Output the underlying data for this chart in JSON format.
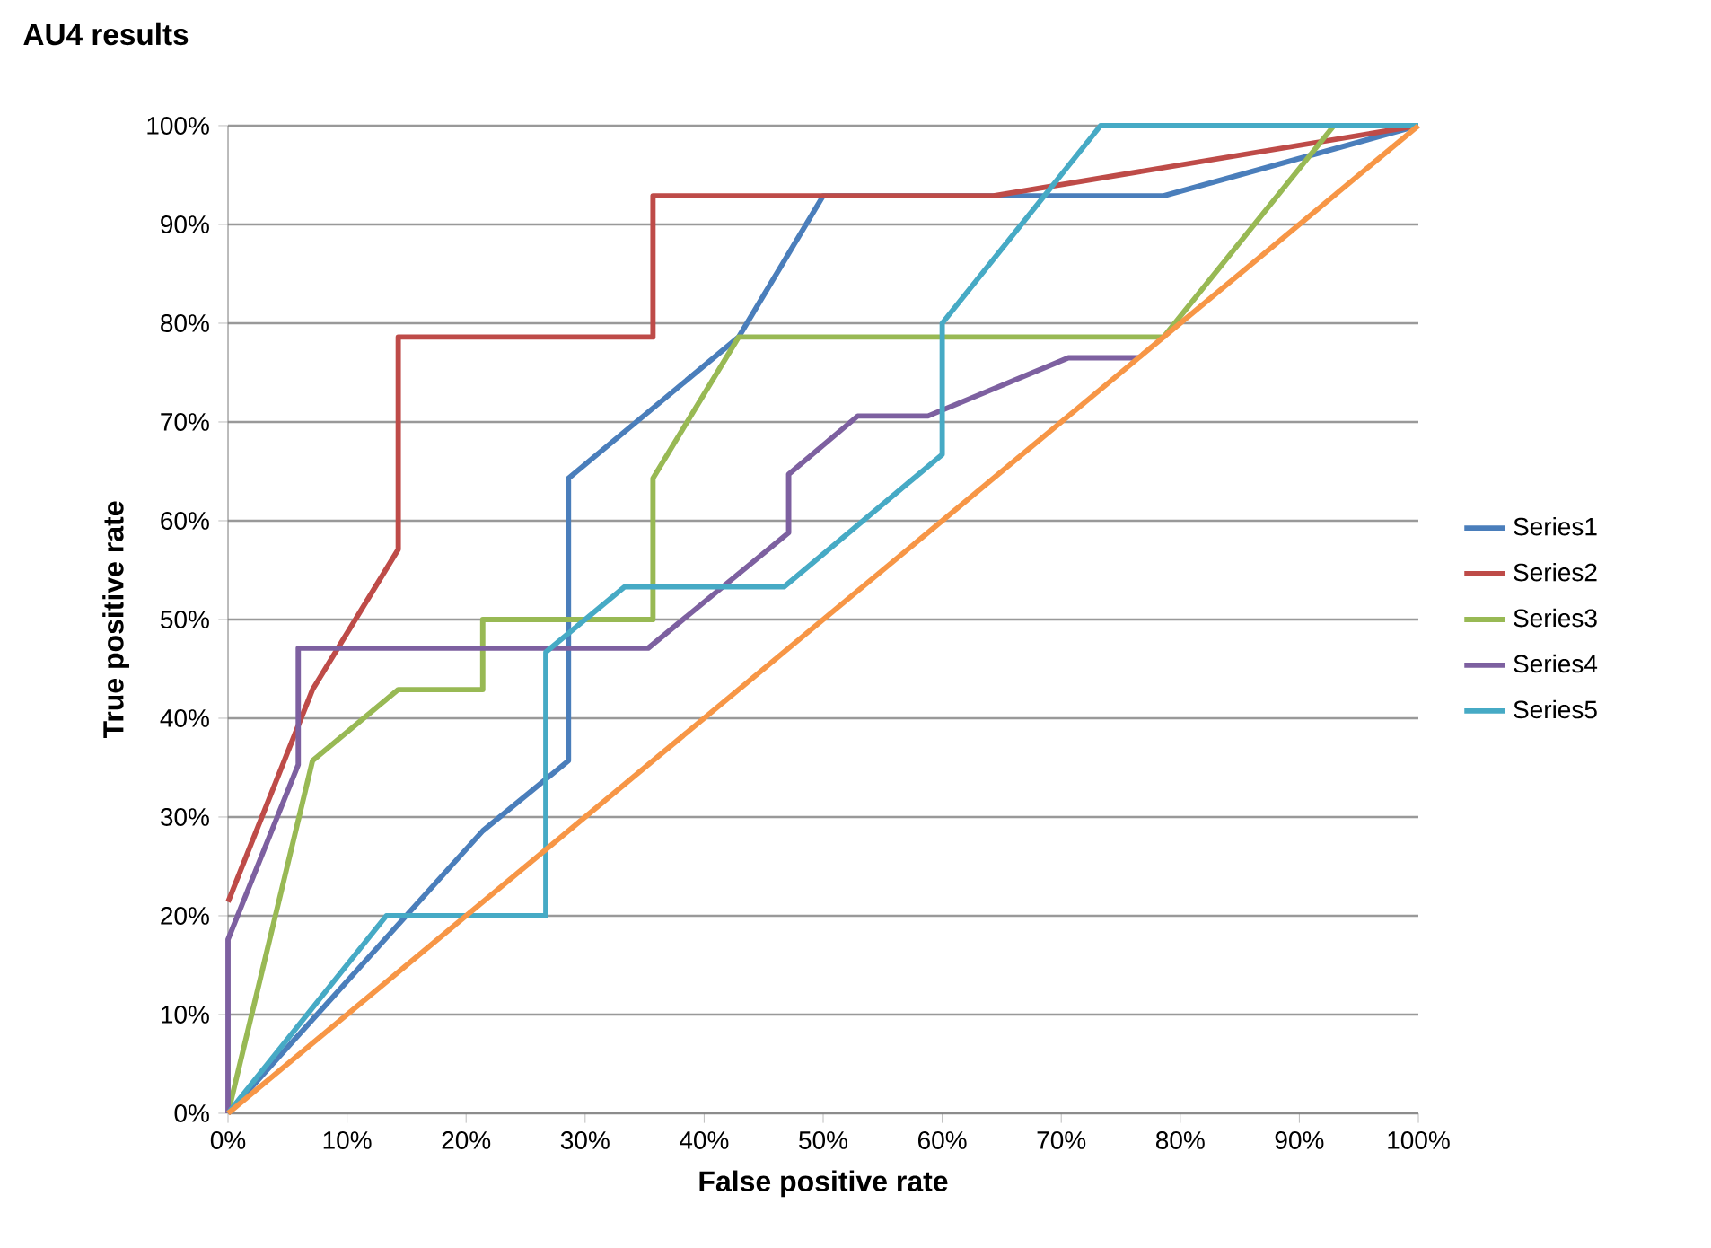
{
  "chart_data": {
    "type": "line",
    "title": "AU4 results",
    "xlabel": "False positive rate",
    "ylabel": "True positive rate",
    "xlim": [
      0,
      100
    ],
    "ylim": [
      0,
      100
    ],
    "xticks": [
      {
        "value": 0,
        "label": "0%"
      },
      {
        "value": 10,
        "label": "10%"
      },
      {
        "value": 20,
        "label": "20%"
      },
      {
        "value": 30,
        "label": "30%"
      },
      {
        "value": 40,
        "label": "40%"
      },
      {
        "value": 50,
        "label": "50%"
      },
      {
        "value": 60,
        "label": "60%"
      },
      {
        "value": 70,
        "label": "70%"
      },
      {
        "value": 80,
        "label": "80%"
      },
      {
        "value": 90,
        "label": "90%"
      },
      {
        "value": 100,
        "label": "100%"
      }
    ],
    "yticks": [
      {
        "value": 0,
        "label": "0%"
      },
      {
        "value": 10,
        "label": "10%"
      },
      {
        "value": 20,
        "label": "20%"
      },
      {
        "value": 30,
        "label": "30%"
      },
      {
        "value": 40,
        "label": "40%"
      },
      {
        "value": 50,
        "label": "50%"
      },
      {
        "value": 60,
        "label": "60%"
      },
      {
        "value": 70,
        "label": "70%"
      },
      {
        "value": 80,
        "label": "80%"
      },
      {
        "value": 90,
        "label": "90%"
      },
      {
        "value": 100,
        "label": "100%"
      }
    ],
    "grid": "y",
    "legend": "right",
    "marker": "none",
    "line_style": "solid",
    "series": [
      {
        "name": "Series1",
        "color": "#4a7ebb",
        "x": [
          0,
          21.4,
          28.6,
          28.6,
          42.9,
          50,
          78.6,
          100
        ],
        "values": [
          0,
          28.6,
          35.7,
          64.3,
          78.6,
          92.9,
          92.9,
          100
        ]
      },
      {
        "name": "Series2",
        "color": "#be4b48",
        "x": [
          0,
          7.1,
          14.3,
          14.3,
          35.7,
          35.7,
          64.3,
          100
        ],
        "values": [
          21.4,
          42.9,
          57.1,
          78.6,
          78.6,
          92.9,
          92.9,
          100
        ]
      },
      {
        "name": "Series3",
        "color": "#98b954",
        "x": [
          0,
          7.1,
          14.3,
          21.4,
          21.4,
          35.7,
          35.7,
          42.9,
          78.6,
          92.9
        ],
        "values": [
          0,
          35.7,
          42.9,
          42.9,
          50,
          50,
          64.3,
          78.6,
          78.6,
          100
        ]
      },
      {
        "name": "Series4",
        "color": "#7d60a0",
        "x": [
          0,
          0,
          5.9,
          5.9,
          35.3,
          47.1,
          47.1,
          52.9,
          58.8,
          70.6,
          76.5
        ],
        "values": [
          0,
          17.6,
          35.3,
          47.1,
          47.1,
          58.8,
          64.7,
          70.6,
          70.6,
          76.5,
          76.5
        ]
      },
      {
        "name": "Series5",
        "color": "#46aac5",
        "x": [
          0,
          13.3,
          26.7,
          26.7,
          33.3,
          46.7,
          60,
          60,
          73.3,
          100
        ],
        "values": [
          0,
          20,
          20,
          46.7,
          53.3,
          53.3,
          66.7,
          80,
          100,
          100
        ]
      },
      {
        "color": "#f79646",
        "x": [
          0,
          100
        ],
        "values": [
          0,
          100
        ]
      }
    ]
  }
}
